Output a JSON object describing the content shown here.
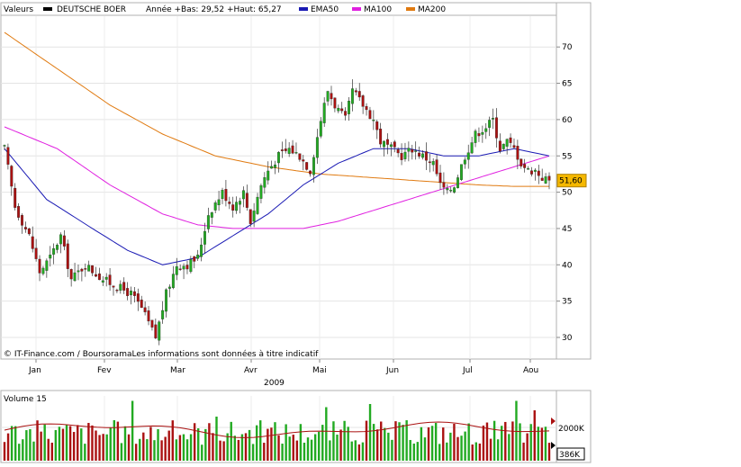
{
  "header": {
    "valeurs_label": "Valeurs",
    "stock_name": "DEUTSCHE BOER",
    "range_text": "Année +Bas: 29,52 +Haut: 65,27",
    "legend": [
      {
        "label": "EMA50",
        "color": "#1a1ab4"
      },
      {
        "label": "MA100",
        "color": "#e020e0"
      },
      {
        "label": "MA200",
        "color": "#e07a10"
      }
    ],
    "stock_color": "#000000"
  },
  "copyright": "© IT-Finance.com / BoursoramaLes informations sont données à titre indicatif",
  "year_label": "2009",
  "volume_panel": {
    "title": "Volume 15",
    "y_tick": "2000K",
    "current_value": "386K"
  },
  "colors": {
    "up": "#22aa22",
    "down": "#aa1111",
    "frame": "#b0b0b0",
    "background": "#ffffff",
    "last_price_bg": "#f5b800",
    "volume_avg": "#aa1111"
  },
  "chart_data": {
    "type": "candlestick",
    "title": "DEUTSCHE BOER",
    "x_month_labels": [
      "Jan",
      "Fev",
      "Mar",
      "Avr",
      "Mai",
      "Jun",
      "Jul",
      "Aou"
    ],
    "x_range": [
      0,
      155
    ],
    "y_ticks": [
      30,
      35,
      40,
      45,
      50,
      55,
      60,
      65,
      70
    ],
    "ylim": [
      28,
      75
    ],
    "last_price": "51,60",
    "year_low": 29.52,
    "year_high": 65.27,
    "close_anchors": [
      [
        0,
        56
      ],
      [
        3,
        48
      ],
      [
        7,
        44
      ],
      [
        10,
        39
      ],
      [
        13,
        41
      ],
      [
        16,
        44
      ],
      [
        19,
        38
      ],
      [
        23,
        40
      ],
      [
        28,
        38
      ],
      [
        32,
        37
      ],
      [
        36,
        36
      ],
      [
        39,
        34
      ],
      [
        41,
        32
      ],
      [
        43,
        30
      ],
      [
        46,
        36
      ],
      [
        49,
        40
      ],
      [
        52,
        40
      ],
      [
        55,
        41
      ],
      [
        58,
        47
      ],
      [
        62,
        50
      ],
      [
        65,
        48
      ],
      [
        68,
        50
      ],
      [
        70,
        46
      ],
      [
        73,
        51
      ],
      [
        75,
        53
      ],
      [
        78,
        55
      ],
      [
        81,
        56
      ],
      [
        84,
        55
      ],
      [
        87,
        53
      ],
      [
        90,
        60
      ],
      [
        92,
        64
      ],
      [
        94,
        62
      ],
      [
        97,
        60
      ],
      [
        99,
        64
      ],
      [
        102,
        62
      ],
      [
        105,
        60
      ],
      [
        107,
        57
      ],
      [
        110,
        56
      ],
      [
        113,
        55
      ],
      [
        116,
        56
      ],
      [
        119,
        55
      ],
      [
        122,
        54
      ],
      [
        124,
        51
      ],
      [
        126,
        50
      ],
      [
        128,
        51
      ],
      [
        131,
        55
      ],
      [
        134,
        58
      ],
      [
        137,
        59
      ],
      [
        139,
        60
      ],
      [
        141,
        56
      ],
      [
        143,
        57
      ],
      [
        145,
        56
      ],
      [
        147,
        54
      ],
      [
        149,
        53
      ],
      [
        151,
        53
      ],
      [
        153,
        52
      ],
      [
        155,
        51.6
      ]
    ],
    "ema50_anchors": [
      [
        0,
        56
      ],
      [
        12,
        49
      ],
      [
        25,
        45
      ],
      [
        35,
        42
      ],
      [
        45,
        40
      ],
      [
        55,
        41
      ],
      [
        65,
        44
      ],
      [
        75,
        47
      ],
      [
        85,
        51
      ],
      [
        95,
        54
      ],
      [
        105,
        56
      ],
      [
        115,
        56
      ],
      [
        125,
        55
      ],
      [
        135,
        55
      ],
      [
        145,
        56
      ],
      [
        155,
        55
      ]
    ],
    "ma100_anchors": [
      [
        0,
        59
      ],
      [
        15,
        56
      ],
      [
        30,
        51
      ],
      [
        45,
        47
      ],
      [
        55,
        45.5
      ],
      [
        65,
        45
      ],
      [
        75,
        45
      ],
      [
        85,
        45
      ],
      [
        95,
        46
      ],
      [
        105,
        47.5
      ],
      [
        115,
        49
      ],
      [
        125,
        50.5
      ],
      [
        135,
        52
      ],
      [
        145,
        53.5
      ],
      [
        155,
        55
      ]
    ],
    "ma200_anchors": [
      [
        0,
        72
      ],
      [
        15,
        67
      ],
      [
        30,
        62
      ],
      [
        45,
        58
      ],
      [
        60,
        55
      ],
      [
        75,
        53.5
      ],
      [
        90,
        52.5
      ],
      [
        105,
        52
      ],
      [
        120,
        51.5
      ],
      [
        135,
        51
      ],
      [
        145,
        50.8
      ],
      [
        155,
        50.8
      ]
    ],
    "volume_bar_count": 150
  }
}
